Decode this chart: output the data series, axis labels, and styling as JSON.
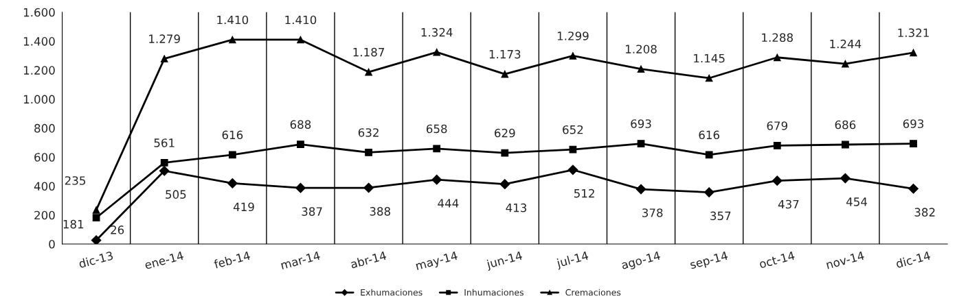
{
  "chart_data": {
    "type": "line",
    "categories": [
      "dic-13",
      "ene-14",
      "feb-14",
      "mar-14",
      "abr-14",
      "may-14",
      "jun-14",
      "jul-14",
      "ago-14",
      "sep-14",
      "oct-14",
      "nov-14",
      "dic-14"
    ],
    "series": [
      {
        "name": "Exhumaciones",
        "color": "#000000",
        "marker": "diamond",
        "values": [
          26,
          505,
          419,
          387,
          388,
          444,
          413,
          512,
          378,
          357,
          437,
          454,
          382
        ],
        "value_labels": [
          "26",
          "505",
          "419",
          "387",
          "388",
          "444",
          "413",
          "512",
          "378",
          "357",
          "437",
          "454",
          "382"
        ]
      },
      {
        "name": "Inhumaciones",
        "color": "#000000",
        "marker": "square",
        "values": [
          181,
          561,
          616,
          688,
          632,
          658,
          629,
          652,
          693,
          616,
          679,
          686,
          693
        ],
        "value_labels": [
          "181",
          "561",
          "616",
          "688",
          "632",
          "658",
          "629",
          "652",
          "693",
          "616",
          "679",
          "686",
          "693"
        ]
      },
      {
        "name": "Cremaciones",
        "color": "#000000",
        "marker": "triangle",
        "values": [
          235,
          1279,
          1410,
          1410,
          1187,
          1324,
          1173,
          1299,
          1208,
          1145,
          1288,
          1244,
          1321
        ],
        "value_labels": [
          "235",
          "1.279",
          "1.410",
          "1.410",
          "1.187",
          "1.324",
          "1.173",
          "1.299",
          "1.208",
          "1.145",
          "1.288",
          "1.244",
          "1.321"
        ]
      }
    ],
    "ylim": [
      0,
      1600
    ],
    "yticks": [
      0,
      200,
      400,
      600,
      800,
      {
        "value": 1000,
        "label": "1.000"
      },
      {
        "value": 1200,
        "label": "1.200"
      },
      {
        "value": 1400,
        "label": "1.400"
      },
      {
        "value": 1600,
        "label": "1.600"
      }
    ],
    "grid": "x",
    "legend": "bottom"
  }
}
